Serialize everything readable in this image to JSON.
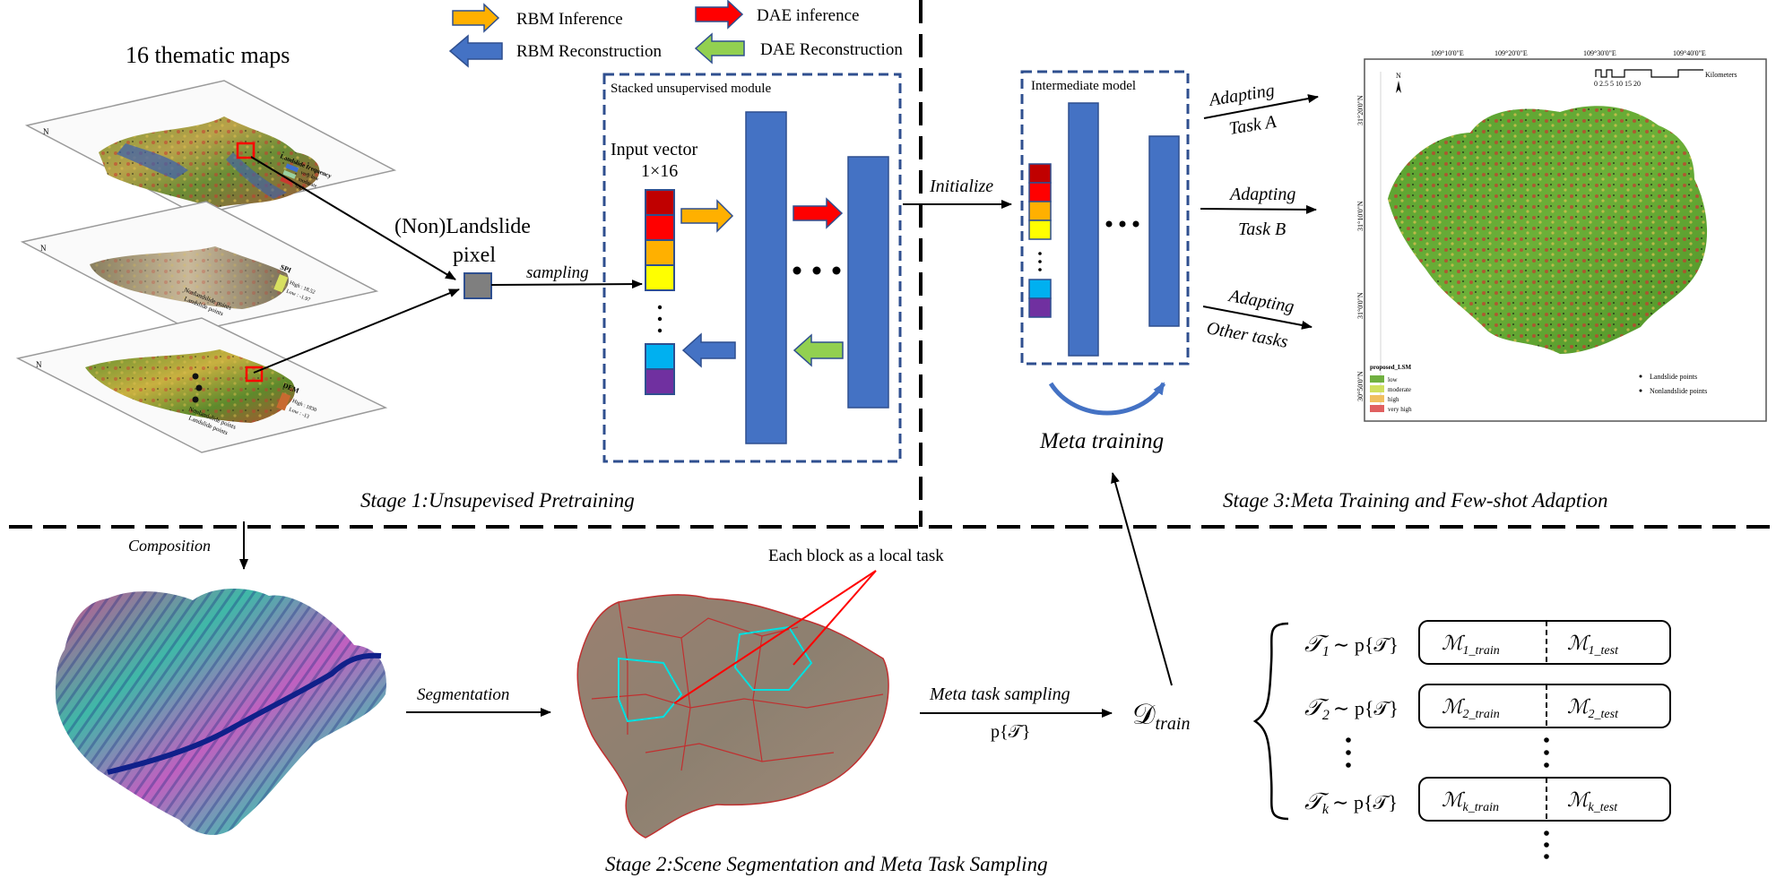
{
  "legend": {
    "rbm_inference": "RBM Inference",
    "dae_inference": "DAE inference",
    "rbm_reconstruction": "RBM Reconstruction",
    "dae_reconstruction": "DAE Reconstruction"
  },
  "stage1": {
    "title": "16 thematic maps",
    "pixel_label_1": "(Non)Landslide",
    "pixel_label_2": "pixel",
    "sampling": "sampling",
    "module_title": "Stacked unsupervised module",
    "input_vector_1": "Input vector",
    "input_vector_2": "1×16",
    "caption": "Stage 1:Unsupevised Pretraining",
    "map_labels": {
      "legend_title_1": "Landslide frequency",
      "legend_1a": "very low",
      "legend_1b": "moderate",
      "legend_1c": "high",
      "legend_title_2": "SPI",
      "legend_2a": "High : 18.52",
      "legend_2b": "Low : -1.97",
      "legend_title_3": "DEM",
      "legend_3a": "High : 1830",
      "legend_3b": "Low : -13",
      "nonlandslide": "Nonlandslide points",
      "landslide": "Landslide points"
    }
  },
  "stage3": {
    "initialize": "Initialize",
    "intermediate": "Intermediate model",
    "meta_training": "Meta training",
    "task_a_1": "Adapting",
    "task_a_2": "Task A",
    "task_b_1": "Adapting",
    "task_b_2": "Task B",
    "task_o_1": "Adapting",
    "task_o_2": "Other tasks",
    "caption": "Stage 3:Meta Training and Few-shot Adaption",
    "map": {
      "lon_1": "109°10'0\"E",
      "lon_2": "109°20'0\"E",
      "lon_3": "109°30'0\"E",
      "lon_4": "109°40'0\"E",
      "lat_1": "31°20'0\"N",
      "lat_2": "31°10'0\"N",
      "lat_3": "31°0'0\"N",
      "lat_4": "30°50'0\"N",
      "north": "N",
      "scale_ticks": "0 2.5 5    10    15    20",
      "scale_unit": "Kilometers",
      "legend_title": "proposed_LSM",
      "legend_items": [
        "low",
        "moderate",
        "high",
        "very high"
      ],
      "pts_landslide": "Landslide points",
      "pts_nonlandslide": "Nonlandslide points"
    }
  },
  "stage2": {
    "composition": "Composition",
    "segmentation": "Segmentation",
    "block_note": "Each block as a local task",
    "meta_sampling": "Meta task sampling",
    "p_t": "p{𝒯}",
    "d_train": "𝒟",
    "d_train_sub": "train",
    "caption": "Stage 2:Scene Segmentation and Meta Task Sampling",
    "tasks": [
      {
        "t": "𝒯",
        "sub": "1",
        "dist": "∼ p{𝒯}",
        "m": "ℳ",
        "train": "1_train",
        "test": "1_test"
      },
      {
        "t": "𝒯",
        "sub": "2",
        "dist": "∼ p{𝒯}",
        "m": "ℳ",
        "train": "2_train",
        "test": "2_test"
      },
      {
        "t": "𝒯",
        "sub": "k",
        "dist": "∼ p{𝒯}",
        "m": "ℳ",
        "train": "k_train",
        "test": "k_test"
      }
    ]
  },
  "colors": {
    "blue": "#4472c4",
    "navy": "#2f4f8f",
    "orange": "#ffb000",
    "red": "#ff0000",
    "green": "#92d050",
    "dark_red": "#c00000",
    "yellow": "#ffff00",
    "cyan": "#00b0f0",
    "purple": "#7030a0"
  }
}
